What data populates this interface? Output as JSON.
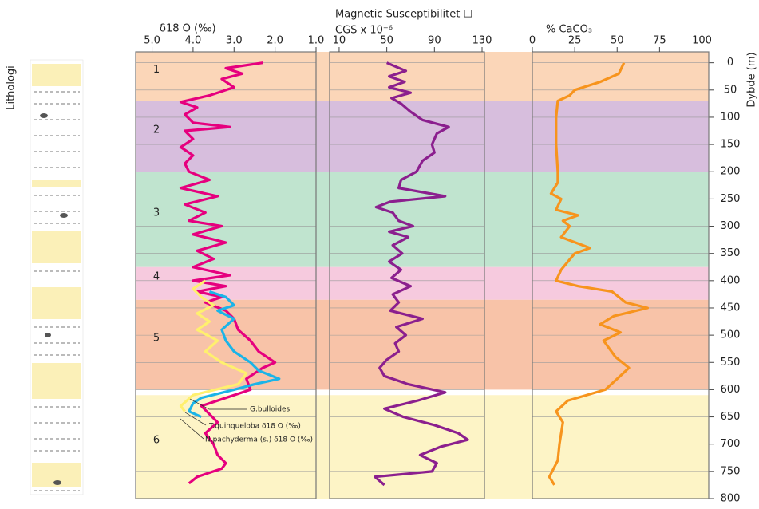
{
  "lithology_label": "Lithologi",
  "zones": [
    {
      "label": "1",
      "top": -20,
      "bottom": 70,
      "color": "#fbd6b8"
    },
    {
      "label": "2",
      "top": 70,
      "bottom": 200,
      "color": "#d7bedd"
    },
    {
      "label": "3",
      "top": 200,
      "bottom": 375,
      "color": "#c0e4cf"
    },
    {
      "label": "4",
      "top": 375,
      "bottom": 435,
      "color": "#f6cade"
    },
    {
      "label": "5",
      "top": 435,
      "bottom": 600,
      "color": "#f8c3a8"
    },
    {
      "label": "6",
      "top": 610,
      "bottom": 800,
      "color": "#fdf4c6"
    }
  ],
  "chart_data": [
    {
      "type": "line",
      "title": "δ18 O (‰)",
      "xlim": [
        5.4,
        1.0
      ],
      "xticks": [
        {
          "value": 5,
          "label": "5.0"
        },
        {
          "value": 4,
          "label": "4.0"
        },
        {
          "value": 3,
          "label": "3.0"
        },
        {
          "value": 2,
          "label": "2.0"
        },
        {
          "value": 1,
          "label": "1.0"
        }
      ],
      "ylim": [
        -20,
        800
      ],
      "grid": true,
      "series": [
        {
          "name": "N.pachyderma (s.) δ18 O (‰)",
          "color": "#e6007e",
          "depth": [
            0,
            10,
            20,
            30,
            45,
            60,
            72,
            82,
            95,
            110,
            118,
            125,
            140,
            155,
            170,
            185,
            200,
            215,
            230,
            245,
            260,
            275,
            290,
            300,
            315,
            330,
            345,
            360,
            375,
            390,
            400,
            410,
            420,
            430,
            440,
            455,
            470,
            490,
            510,
            530,
            550,
            560,
            580,
            600,
            615,
            630,
            645,
            660,
            680,
            700,
            720,
            735,
            745,
            760,
            772
          ],
          "values": [
            2.3,
            3.2,
            2.8,
            3.3,
            3.0,
            3.6,
            4.3,
            3.9,
            4.2,
            4.0,
            3.1,
            4.2,
            4.0,
            4.3,
            4.0,
            4.2,
            4.1,
            3.6,
            4.3,
            3.4,
            4.2,
            3.7,
            4.1,
            3.3,
            4.0,
            3.2,
            3.9,
            3.5,
            4.0,
            3.1,
            4.0,
            3.2,
            3.9,
            3.3,
            3.7,
            3.2,
            3.0,
            2.9,
            2.6,
            2.4,
            2.0,
            2.3,
            2.7,
            2.6,
            3.2,
            3.8,
            3.6,
            3.4,
            3.7,
            3.5,
            3.4,
            3.2,
            3.3,
            3.9,
            4.1
          ]
        },
        {
          "name": "T.quinqueloba δ18 O (‰)",
          "color": "#1ab4e8",
          "depth": [
            420,
            430,
            445,
            455,
            470,
            490,
            510,
            530,
            550,
            565,
            580,
            590,
            600,
            615,
            625,
            640,
            650
          ],
          "values": [
            3.6,
            3.2,
            3.0,
            3.4,
            3.0,
            3.3,
            3.2,
            3.0,
            2.6,
            2.4,
            1.9,
            2.5,
            3.0,
            3.8,
            4.0,
            4.1,
            3.8
          ]
        },
        {
          "name": "G.bulloides",
          "color": "#fff06e",
          "depth": [
            400,
            415,
            430,
            445,
            460,
            475,
            490,
            510,
            530,
            550,
            570,
            590,
            610,
            630,
            640
          ],
          "values": [
            3.7,
            4.0,
            3.8,
            3.5,
            3.9,
            3.6,
            3.9,
            3.4,
            3.7,
            3.3,
            2.7,
            2.9,
            4.0,
            4.3,
            4.2
          ]
        }
      ]
    },
    {
      "type": "line",
      "title": "Magnetic Susceptibilitet ☐",
      "subtitle": "CGS x 10⁻⁶",
      "xlim": [
        2,
        132
      ],
      "xticks": [
        10,
        50,
        90,
        130
      ],
      "ylim": [
        -20,
        800
      ],
      "grid": true,
      "series": [
        {
          "color": "#8b1f8e",
          "depth": [
            0,
            15,
            25,
            35,
            45,
            55,
            65,
            75,
            90,
            105,
            118,
            130,
            150,
            165,
            180,
            200,
            215,
            230,
            245,
            255,
            265,
            275,
            290,
            300,
            310,
            320,
            335,
            350,
            365,
            380,
            395,
            410,
            425,
            440,
            455,
            470,
            485,
            500,
            515,
            530,
            545,
            560,
            575,
            590,
            605,
            620,
            635,
            650,
            665,
            680,
            692,
            705,
            720,
            735,
            750,
            760,
            775
          ],
          "values": [
            50,
            66,
            52,
            65,
            52,
            70,
            54,
            62,
            70,
            80,
            102,
            92,
            88,
            90,
            80,
            75,
            62,
            60,
            99,
            53,
            41,
            55,
            60,
            72,
            52,
            68,
            55,
            63,
            52,
            62,
            54,
            70,
            55,
            60,
            53,
            80,
            58,
            66,
            57,
            60,
            50,
            44,
            48,
            68,
            99,
            76,
            48,
            64,
            90,
            110,
            118,
            95,
            78,
            92,
            88,
            40,
            48
          ]
        }
      ]
    },
    {
      "type": "line",
      "title": "% CaCO₃",
      "xlim": [
        0,
        104
      ],
      "xticks": [
        0,
        25,
        50,
        75,
        100
      ],
      "ylim": [
        -20,
        800
      ],
      "yticks": [
        0,
        50,
        100,
        150,
        200,
        250,
        300,
        350,
        400,
        450,
        500,
        550,
        600,
        650,
        700,
        750,
        800
      ],
      "ylabel": "Dybde (m)",
      "grid": true,
      "series": [
        {
          "color": "#f7941d",
          "depth": [
            0,
            20,
            35,
            50,
            60,
            70,
            100,
            150,
            200,
            220,
            240,
            250,
            270,
            280,
            290,
            300,
            320,
            340,
            350,
            380,
            400,
            410,
            420,
            440,
            450,
            465,
            480,
            495,
            510,
            540,
            560,
            580,
            600,
            620,
            640,
            660,
            700,
            730,
            760,
            775
          ],
          "values": [
            54,
            51,
            40,
            25,
            22,
            15,
            14,
            14,
            15,
            15,
            11,
            17,
            14,
            27,
            18,
            22,
            17,
            34,
            25,
            17,
            14,
            27,
            47,
            55,
            68,
            48,
            40,
            52,
            42,
            49,
            57,
            50,
            43,
            21,
            14,
            18,
            16,
            15,
            10,
            13
          ]
        }
      ]
    }
  ]
}
